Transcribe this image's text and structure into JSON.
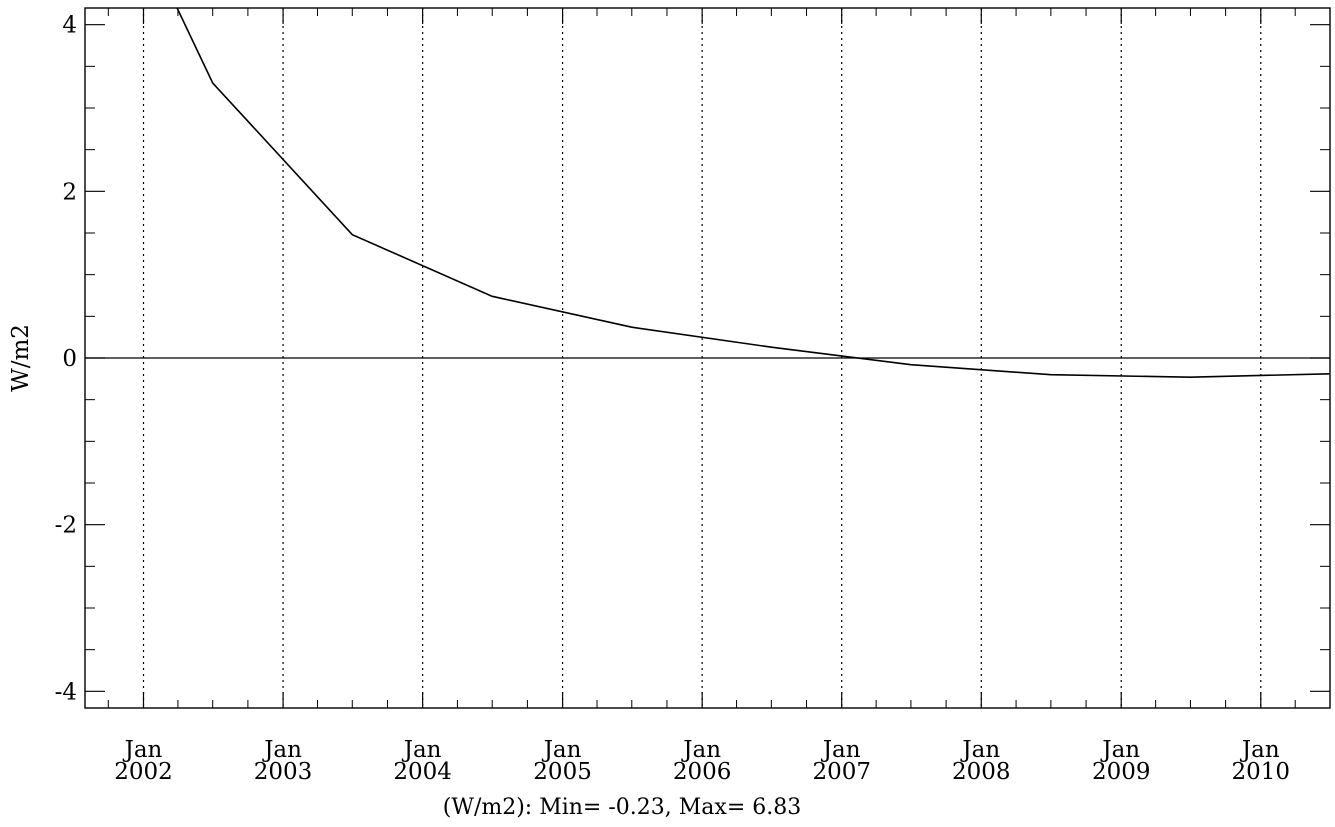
{
  "chart_data": {
    "type": "line",
    "title": "",
    "xlabel": "",
    "ylabel": "W/m2",
    "ylim": [
      -4.2,
      4.2
    ],
    "y_ticks": [
      -4,
      -2,
      0,
      2,
      4
    ],
    "y_tick_labels": [
      "-4",
      "-2",
      "0",
      "2",
      "4"
    ],
    "xlim": [
      "2001-08-01",
      "2010-07-01"
    ],
    "x_ticks": [
      {
        "date": "2002-01-01",
        "month": "Jan",
        "year": "2002"
      },
      {
        "date": "2003-01-01",
        "month": "Jan",
        "year": "2003"
      },
      {
        "date": "2004-01-01",
        "month": "Jan",
        "year": "2004"
      },
      {
        "date": "2005-01-01",
        "month": "Jan",
        "year": "2005"
      },
      {
        "date": "2006-01-01",
        "month": "Jan",
        "year": "2006"
      },
      {
        "date": "2007-01-01",
        "month": "Jan",
        "year": "2007"
      },
      {
        "date": "2008-01-01",
        "month": "Jan",
        "year": "2008"
      },
      {
        "date": "2009-01-01",
        "month": "Jan",
        "year": "2009"
      },
      {
        "date": "2010-01-01",
        "month": "Jan",
        "year": "2010"
      }
    ],
    "grid": "vertical dotted lines at each January",
    "zero_line": true,
    "series": [
      {
        "x": [
          "2001-07-01",
          "2002-07-01",
          "2003-07-01",
          "2004-07-01",
          "2005-07-01",
          "2006-07-01",
          "2007-07-01",
          "2008-07-01",
          "2009-07-01",
          "2010-07-01"
        ],
        "y": [
          6.83,
          3.3,
          1.48,
          0.74,
          0.37,
          0.13,
          -0.08,
          -0.2,
          -0.23,
          -0.19
        ],
        "color": "#000000"
      }
    ],
    "footer": "(W/m2): Min= -0.23, Max= 6.83"
  }
}
